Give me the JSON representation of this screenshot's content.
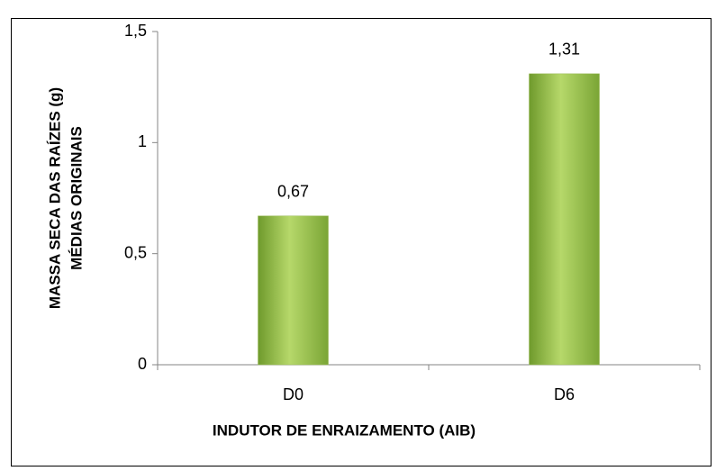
{
  "chart_data": {
    "type": "bar",
    "y_label": [
      "MASSA SECA DAS RAÍZES (g)",
      "MÉDIAS ORIGINAIS"
    ],
    "x_label": "INDUTOR DE ENRAIZAMENTO (AIB)",
    "categories": [
      "D0",
      "D6"
    ],
    "values": [
      0.67,
      1.31
    ],
    "value_labels": [
      "0,67",
      "1,31"
    ],
    "color": "#9bbb59",
    "ylim": [
      0,
      1.5
    ],
    "yticks": [
      0,
      {
        "value": 0.5,
        "label": "0,5"
      },
      1,
      {
        "value": 1.5,
        "label": "1,5"
      }
    ],
    "grid": false
  }
}
